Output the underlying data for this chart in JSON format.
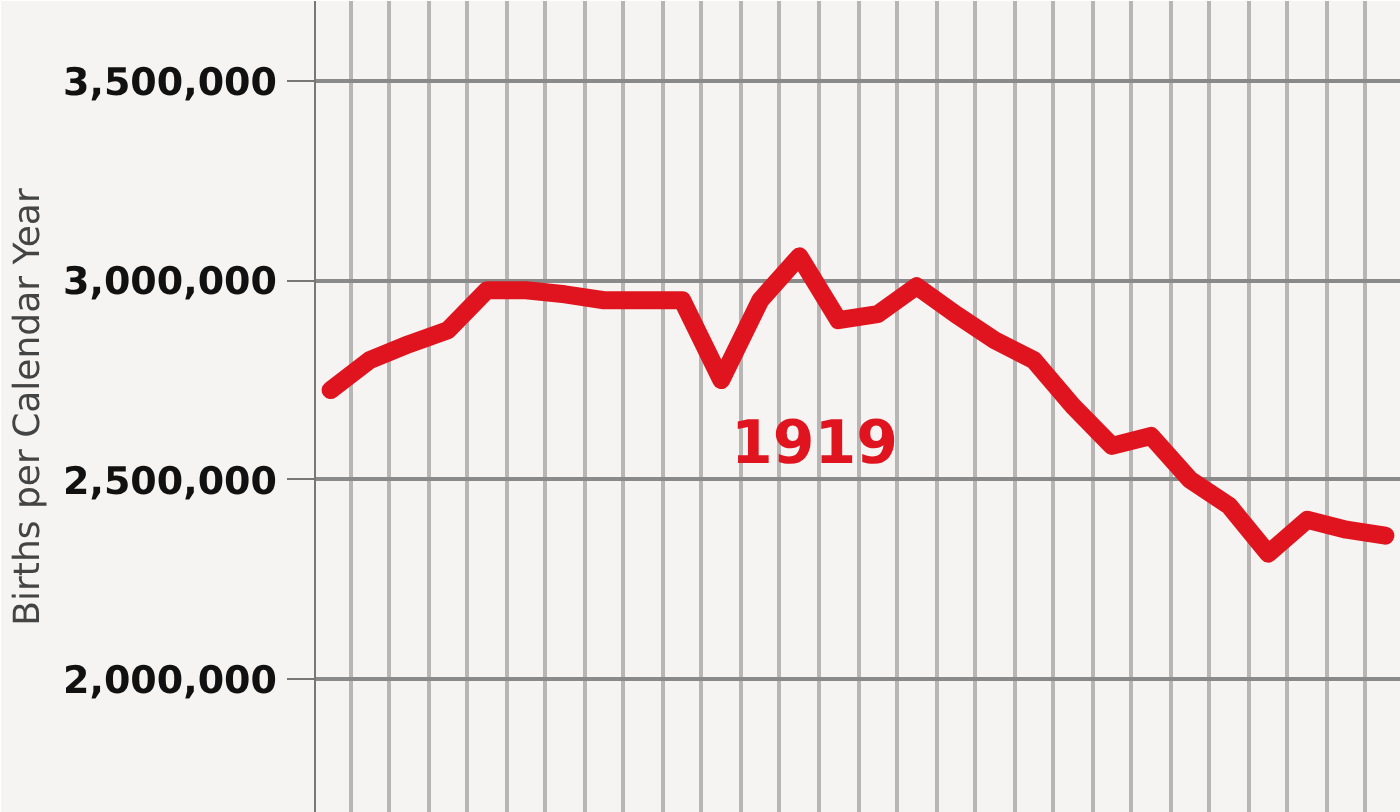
{
  "chart_data": {
    "type": "line",
    "ylabel": "Births per Calendar Year",
    "categories": [
      null,
      null,
      null,
      null,
      null,
      null,
      null,
      null,
      null,
      null,
      null,
      null,
      null,
      null,
      null,
      null,
      null,
      null,
      null,
      null,
      null,
      null,
      null,
      null,
      null,
      null,
      null,
      null
    ],
    "series": [
      {
        "color": "#e0141e",
        "values": [
          2725000,
          2800000,
          2840000,
          2875000,
          2975000,
          2975000,
          2965000,
          2950000,
          2950000,
          2950000,
          2750000,
          2950000,
          3060000,
          2900000,
          2915000,
          2985000,
          2915000,
          2850000,
          2800000,
          2685000,
          2585000,
          2610000,
          2500000,
          2435000,
          2315000,
          2400000,
          2375000,
          2360000
        ]
      }
    ],
    "ylim": [
      1665000,
      3700000
    ],
    "yticks": [
      {
        "value": 2000000,
        "label": "2,000,000"
      },
      {
        "value": 2500000,
        "label": "2,500,000"
      },
      {
        "value": 3000000,
        "label": "3,000,000"
      },
      {
        "value": 3500000,
        "label": "3,500,000"
      }
    ],
    "annotations": [
      "1919"
    ],
    "grid": true,
    "tick_labels": "y",
    "line_style": "solid"
  }
}
